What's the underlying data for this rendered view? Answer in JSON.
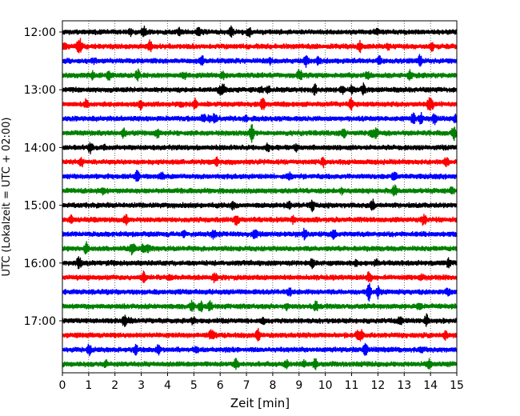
{
  "chart_data": {
    "type": "line",
    "subtype": "helicorder",
    "xlabel": "Zeit  [min]",
    "ylabel": "UTC (Lokalzeit = UTC + 02:00)",
    "xlim": [
      0,
      15
    ],
    "x_ticks": [
      "0",
      "1",
      "2",
      "3",
      "4",
      "5",
      "6",
      "7",
      "8",
      "9",
      "10",
      "11",
      "12",
      "13",
      "14",
      "15"
    ],
    "y_ticks": [
      "12:00",
      "13:00",
      "14:00",
      "15:00",
      "16:00",
      "17:00"
    ],
    "trace_start_times_utc": [
      "12:00",
      "12:15",
      "12:30",
      "12:45",
      "13:00",
      "13:15",
      "13:30",
      "13:45",
      "14:00",
      "14:15",
      "14:30",
      "14:45",
      "15:00",
      "15:15",
      "15:30",
      "15:45",
      "16:00",
      "16:15",
      "16:30",
      "16:45",
      "17:00",
      "17:15",
      "17:30",
      "17:45"
    ],
    "trace_minutes": 15,
    "colors": [
      "#000000",
      "#ff0000",
      "#0000ff",
      "#008000"
    ],
    "grid": {
      "vertical": "dotted",
      "minutes": [
        1,
        2,
        3,
        4,
        5,
        6,
        7,
        8,
        9,
        10,
        11,
        12,
        13,
        14
      ]
    }
  }
}
